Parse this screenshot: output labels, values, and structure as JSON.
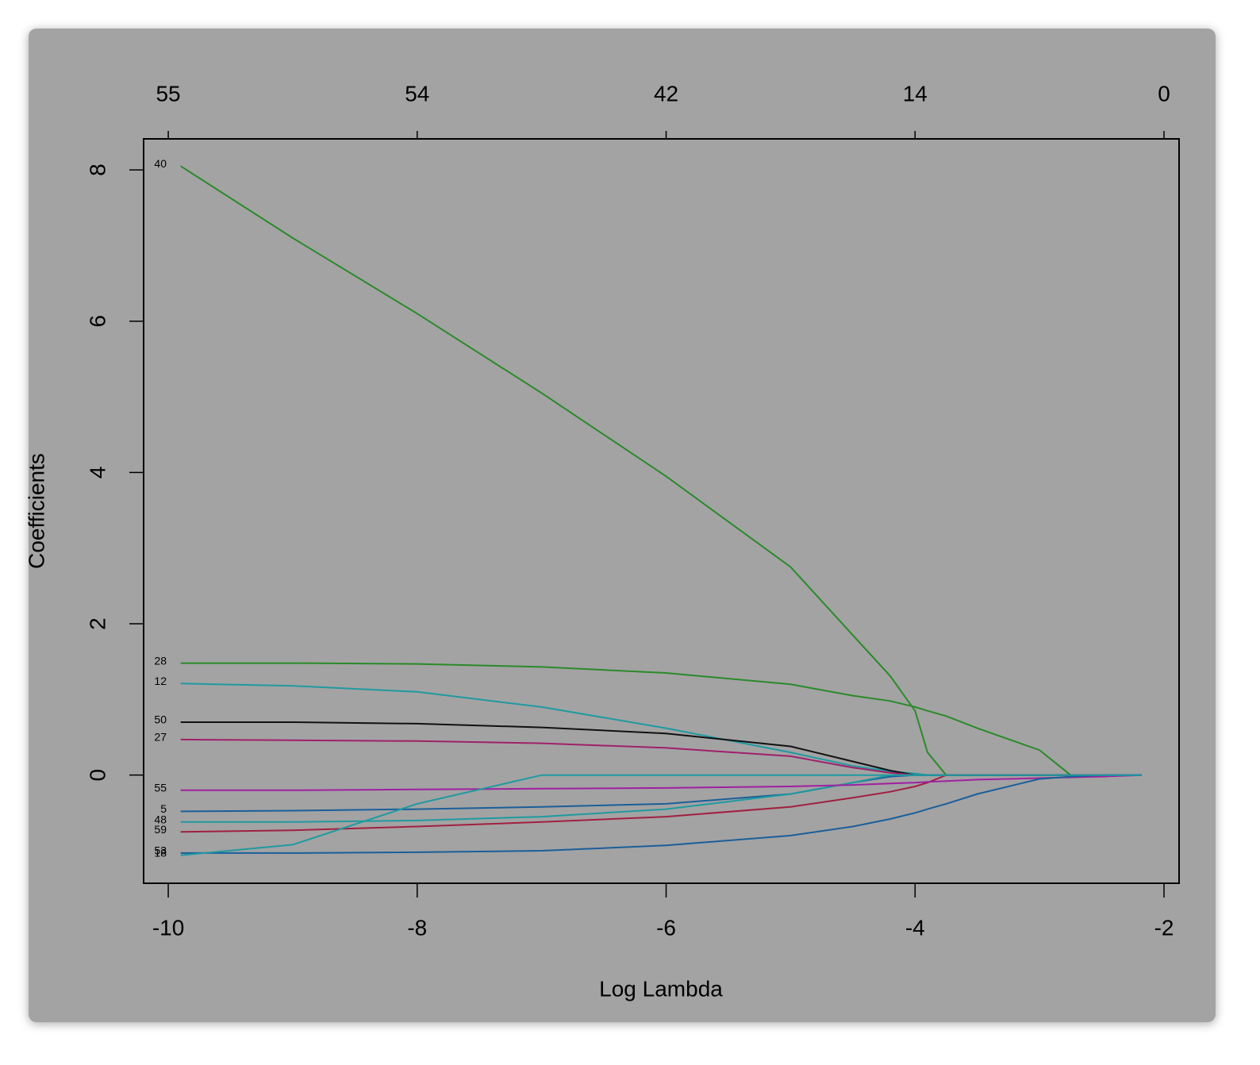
{
  "chart_data": {
    "type": "line",
    "xlabel": "Log Lambda",
    "ylabel": "Coefficients",
    "x": [
      -9.9,
      -9,
      -8,
      -7,
      -6,
      -5,
      -4.5,
      -4.2,
      -4,
      -3.9,
      -3.75,
      -3.5,
      -3,
      -2.75,
      -2.5,
      -2.18
    ],
    "series": [
      {
        "name": "40",
        "color": "#2a8a2a",
        "values": [
          8.05,
          7.1,
          6.1,
          5.05,
          3.95,
          2.75,
          1.85,
          1.31,
          0.85,
          0.3,
          0,
          0,
          0,
          0,
          0,
          0
        ]
      },
      {
        "name": "28",
        "color": "#2a8a2a",
        "values": [
          1.48,
          1.48,
          1.47,
          1.43,
          1.35,
          1.2,
          1.05,
          0.98,
          0.9,
          0.85,
          0.78,
          0.62,
          0.33,
          0,
          0,
          0
        ]
      },
      {
        "name": "12",
        "color": "#1f9aa0",
        "values": [
          1.21,
          1.18,
          1.1,
          0.9,
          0.62,
          0.3,
          0.12,
          0.05,
          0.02,
          0,
          0,
          0,
          0,
          0,
          0,
          0
        ]
      },
      {
        "name": "50",
        "color": "#111111",
        "values": [
          0.7,
          0.7,
          0.68,
          0.63,
          0.55,
          0.38,
          0.18,
          0.06,
          0,
          0,
          0,
          0,
          0,
          0,
          0,
          0
        ]
      },
      {
        "name": "27",
        "color": "#a0206a",
        "values": [
          0.47,
          0.46,
          0.45,
          0.42,
          0.36,
          0.25,
          0.1,
          0.03,
          0,
          0,
          0,
          0,
          0,
          0,
          0,
          0
        ]
      },
      {
        "name": "5",
        "color": "#1a5f9a",
        "values": [
          -0.48,
          -0.47,
          -0.45,
          -0.42,
          -0.38,
          -0.25,
          -0.1,
          -0.02,
          0,
          0,
          0,
          0,
          0,
          0,
          0,
          0
        ]
      },
      {
        "name": "48",
        "color": "#1f9aa0",
        "values": [
          -0.62,
          -0.62,
          -0.6,
          -0.55,
          -0.45,
          -0.25,
          -0.1,
          0,
          0,
          0,
          0,
          0,
          0,
          0,
          0,
          0
        ]
      },
      {
        "name": "59",
        "color": "#a02040",
        "values": [
          -0.75,
          -0.73,
          -0.68,
          -0.62,
          -0.55,
          -0.42,
          -0.3,
          -0.22,
          -0.15,
          -0.1,
          0,
          0,
          0,
          0,
          0,
          0
        ]
      },
      {
        "name": "55",
        "color": "#a020a0",
        "values": [
          -0.2,
          -0.2,
          -0.19,
          -0.18,
          -0.17,
          -0.15,
          -0.13,
          -0.11,
          -0.1,
          -0.09,
          -0.08,
          -0.06,
          -0.04,
          -0.03,
          -0.02,
          0
        ]
      },
      {
        "name": "53",
        "color": "#1a5f9a",
        "values": [
          -1.03,
          -1.03,
          -1.02,
          -1.0,
          -0.93,
          -0.8,
          -0.68,
          -0.58,
          -0.5,
          -0.45,
          -0.38,
          -0.25,
          -0.05,
          -0.02,
          0,
          0
        ]
      },
      {
        "name": "18",
        "color": "#1f9aa0",
        "values": [
          -1.06,
          -0.92,
          -0.38,
          0,
          0,
          0,
          0,
          0,
          0,
          0,
          0,
          0,
          0,
          0,
          0,
          0
        ]
      }
    ],
    "xlim": [
      -10.198,
      -1.879
    ],
    "ylim": [
      -1.43,
      8.41
    ],
    "xticks": [
      -10,
      -8,
      -6,
      -4,
      -2
    ],
    "top_xticks": [
      {
        "value": -10,
        "label": "55"
      },
      {
        "value": -8,
        "label": "54"
      },
      {
        "value": -6,
        "label": "42"
      },
      {
        "value": -4,
        "label": "14"
      },
      {
        "value": -2,
        "label": "0"
      }
    ],
    "yticks": [
      0,
      2,
      4,
      6,
      8
    ]
  }
}
